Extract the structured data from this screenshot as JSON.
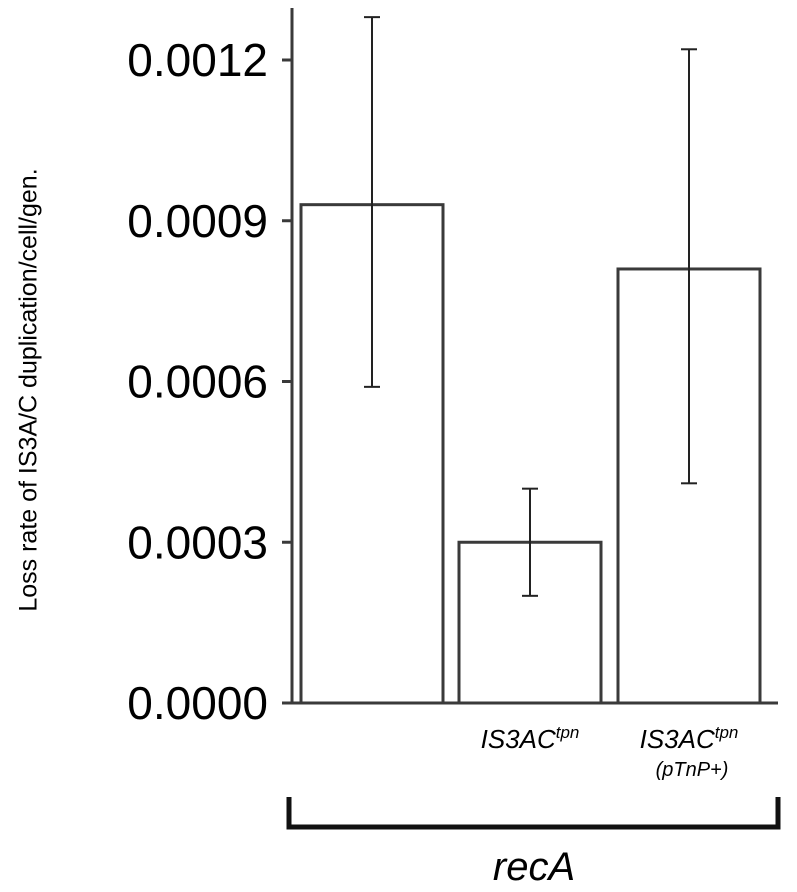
{
  "chart_data": {
    "type": "bar",
    "ylabel": "Loss rate of IS3A/C duplication/cell/gen.",
    "ylim": [
      0,
      0.0013
    ],
    "yticks": [
      "0.0000",
      "0.0003",
      "0.0006",
      "0.0009",
      "0.0012"
    ],
    "tick_values": [
      0,
      0.0003,
      0.0006,
      0.0009,
      0.0012
    ],
    "categories": [
      {
        "main": "",
        "sup": "",
        "sub": ""
      },
      {
        "main": "IS3AC",
        "sup": "tpn",
        "sub": ""
      },
      {
        "main": "IS3AC",
        "sup": "tpn",
        "sub": "(pTnP+)"
      }
    ],
    "values": [
      0.00093,
      0.0003,
      0.00081
    ],
    "error_low": [
      0.00059,
      0.0002,
      0.00041
    ],
    "error_high": [
      0.00128,
      0.0004,
      0.00122
    ],
    "group_label": "recA",
    "grid": false,
    "legend": false,
    "colors": {
      "bar_fill": "#ffffff",
      "stroke": "#3a3a3a",
      "text": "#000000"
    }
  }
}
